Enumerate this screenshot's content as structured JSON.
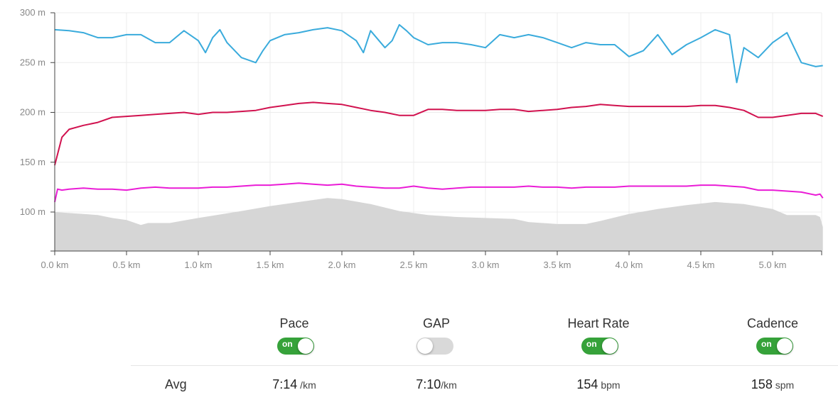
{
  "chart_data": {
    "type": "line",
    "x_unit": "km",
    "y_unit": "m",
    "xlim": [
      0,
      5.35
    ],
    "ylim": [
      60,
      300
    ],
    "x_ticks": [
      0.0,
      0.5,
      1.0,
      1.5,
      2.0,
      2.5,
      3.0,
      3.5,
      4.0,
      4.5,
      5.0
    ],
    "x_tick_labels": [
      "0.0 km",
      "0.5 km",
      "1.0 km",
      "1.5 km",
      "2.0 km",
      "2.5 km",
      "3.0 km",
      "3.5 km",
      "4.0 km",
      "4.5 km",
      "5.0 km"
    ],
    "y_ticks": [
      100,
      150,
      200,
      250,
      300
    ],
    "y_tick_labels": [
      "100 m",
      "150 m",
      "200 m",
      "250 m",
      "300 m"
    ],
    "grid": true,
    "series": [
      {
        "type": "area",
        "color": "#d6d6d6",
        "x": [
          0,
          0.1,
          0.2,
          0.3,
          0.4,
          0.5,
          0.6,
          0.65,
          0.8,
          1.0,
          1.3,
          1.5,
          1.7,
          1.9,
          2.0,
          2.2,
          2.4,
          2.6,
          2.8,
          3.0,
          3.2,
          3.3,
          3.5,
          3.7,
          3.8,
          4.0,
          4.2,
          4.4,
          4.6,
          4.8,
          5.0,
          5.1,
          5.2,
          5.3,
          5.33,
          5.35
        ],
        "y": [
          100,
          99,
          98,
          97,
          94,
          92,
          87,
          89,
          89,
          94,
          101,
          106,
          110,
          114,
          113,
          108,
          101,
          97,
          95,
          94,
          93,
          90,
          88,
          88,
          91,
          98,
          103,
          107,
          110,
          108,
          103,
          97,
          97,
          97,
          95,
          85
        ]
      },
      {
        "type": "line",
        "color": "#3aabdc",
        "x": [
          0,
          0.1,
          0.2,
          0.3,
          0.4,
          0.5,
          0.6,
          0.7,
          0.8,
          0.9,
          1.0,
          1.05,
          1.1,
          1.15,
          1.2,
          1.3,
          1.4,
          1.45,
          1.5,
          1.6,
          1.7,
          1.8,
          1.9,
          2.0,
          2.1,
          2.15,
          2.2,
          2.3,
          2.35,
          2.4,
          2.45,
          2.5,
          2.6,
          2.7,
          2.8,
          2.9,
          3.0,
          3.1,
          3.2,
          3.3,
          3.4,
          3.5,
          3.6,
          3.7,
          3.8,
          3.9,
          4.0,
          4.1,
          4.2,
          4.3,
          4.4,
          4.5,
          4.6,
          4.7,
          4.75,
          4.8,
          4.9,
          5.0,
          5.1,
          5.2,
          5.3,
          5.35
        ],
        "y": [
          283,
          282,
          280,
          275,
          275,
          278,
          278,
          270,
          270,
          282,
          272,
          260,
          275,
          283,
          270,
          255,
          250,
          262,
          272,
          278,
          280,
          283,
          285,
          282,
          272,
          260,
          282,
          265,
          272,
          288,
          282,
          275,
          268,
          270,
          270,
          268,
          265,
          278,
          275,
          278,
          275,
          270,
          265,
          270,
          268,
          268,
          256,
          262,
          278,
          258,
          268,
          275,
          283,
          278,
          230,
          265,
          255,
          270,
          280,
          250,
          246,
          247
        ]
      },
      {
        "type": "line",
        "color": "#d1124f",
        "x": [
          0,
          0.05,
          0.1,
          0.2,
          0.3,
          0.4,
          0.5,
          0.6,
          0.7,
          0.8,
          0.9,
          1.0,
          1.1,
          1.2,
          1.3,
          1.4,
          1.5,
          1.6,
          1.7,
          1.8,
          1.9,
          2.0,
          2.1,
          2.2,
          2.3,
          2.4,
          2.5,
          2.6,
          2.7,
          2.8,
          2.9,
          3.0,
          3.1,
          3.2,
          3.3,
          3.4,
          3.5,
          3.6,
          3.7,
          3.8,
          3.9,
          4.0,
          4.2,
          4.4,
          4.5,
          4.6,
          4.7,
          4.8,
          4.9,
          5.0,
          5.1,
          5.2,
          5.3,
          5.35
        ],
        "y": [
          147,
          175,
          183,
          187,
          190,
          195,
          196,
          197,
          198,
          199,
          200,
          198,
          200,
          200,
          201,
          202,
          205,
          207,
          209,
          210,
          209,
          208,
          205,
          202,
          200,
          197,
          197,
          203,
          203,
          202,
          202,
          202,
          203,
          203,
          201,
          202,
          203,
          205,
          206,
          208,
          207,
          206,
          206,
          206,
          207,
          207,
          205,
          202,
          195,
          195,
          197,
          199,
          199,
          196
        ]
      },
      {
        "type": "line",
        "color": "#ea1cd6",
        "x": [
          0,
          0.02,
          0.05,
          0.1,
          0.2,
          0.3,
          0.4,
          0.5,
          0.6,
          0.7,
          0.8,
          0.9,
          1.0,
          1.1,
          1.2,
          1.3,
          1.4,
          1.5,
          1.6,
          1.7,
          1.8,
          1.9,
          2.0,
          2.1,
          2.2,
          2.3,
          2.4,
          2.5,
          2.6,
          2.7,
          2.8,
          2.9,
          3.0,
          3.1,
          3.2,
          3.3,
          3.4,
          3.5,
          3.6,
          3.7,
          3.8,
          3.9,
          4.0,
          4.1,
          4.2,
          4.3,
          4.4,
          4.5,
          4.6,
          4.7,
          4.8,
          4.9,
          5.0,
          5.1,
          5.2,
          5.3,
          5.33,
          5.35
        ],
        "y": [
          110,
          123,
          122,
          123,
          124,
          123,
          123,
          122,
          124,
          125,
          124,
          124,
          124,
          125,
          125,
          126,
          127,
          127,
          128,
          129,
          128,
          127,
          128,
          126,
          125,
          124,
          124,
          126,
          124,
          123,
          124,
          125,
          125,
          125,
          125,
          126,
          125,
          125,
          124,
          125,
          125,
          125,
          126,
          126,
          126,
          126,
          126,
          127,
          127,
          126,
          125,
          122,
          122,
          121,
          120,
          117,
          118,
          114
        ]
      }
    ]
  },
  "metrics": [
    {
      "label": "Pace",
      "toggle_text": "on",
      "on": true,
      "avg_value": "7:14",
      "avg_unit": " /km"
    },
    {
      "label": "GAP",
      "toggle_text": "",
      "on": false,
      "avg_value": "7:10",
      "avg_unit": "/km"
    },
    {
      "label": "Heart Rate",
      "toggle_text": "on",
      "on": true,
      "avg_value": "154",
      "avg_unit": " bpm"
    },
    {
      "label": "Cadence",
      "toggle_text": "on",
      "on": true,
      "avg_value": "158",
      "avg_unit": " spm"
    }
  ],
  "avg_label": "Avg"
}
